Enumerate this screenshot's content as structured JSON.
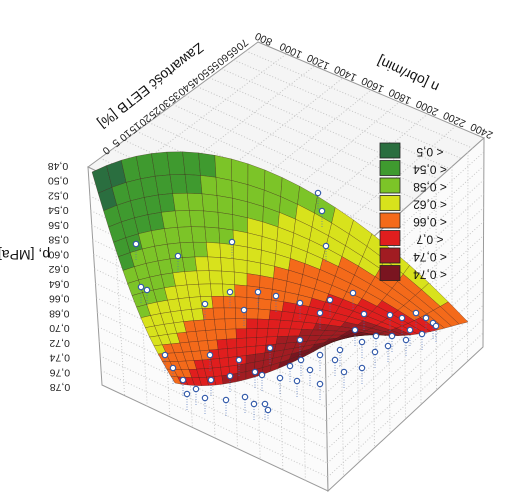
{
  "chart_data": {
    "type": "surface3d",
    "orientation_note": "",
    "axes": {
      "x": {
        "label": "Zawartość EETB [%]",
        "ticks": [
          0,
          5,
          10,
          15,
          20,
          25,
          30,
          35,
          40,
          45,
          50,
          55,
          60,
          65,
          70
        ],
        "range": [
          0,
          70
        ]
      },
      "y": {
        "label": "n [obr/min]",
        "ticks": [
          800,
          1000,
          1200,
          1400,
          1600,
          1800,
          2000,
          2200,
          2400
        ],
        "range": [
          800,
          2400
        ]
      },
      "z": {
        "label": "p, [MPa]",
        "ticks": [
          "0,78",
          "0,76",
          "0,74",
          "0,72",
          "0,70",
          "0,68",
          "0,66",
          "0,64",
          "0,62",
          "0,60",
          "0,58",
          "0,56",
          "0,54",
          "0,52",
          "0,50",
          "0,48"
        ],
        "range": [
          0.48,
          0.78
        ]
      }
    },
    "legend": {
      "placement": "right",
      "items": [
        {
          "label": "< 0,5",
          "color": "#2a6e3f"
        },
        {
          "label": "< 0,54",
          "color": "#3f9a2f"
        },
        {
          "label": "< 0,58",
          "color": "#7cc428"
        },
        {
          "label": "< 0,62",
          "color": "#d8e21c"
        },
        {
          "label": "< 0,66",
          "color": "#f46a1a"
        },
        {
          "label": "< 0,7",
          "color": "#e01e1e"
        },
        {
          "label": "< 0,74",
          "color": "#a11c22"
        },
        {
          "label": "< 0,74",
          "color": "#7a1520"
        }
      ]
    },
    "surface_colors": [
      "#2a6e3f",
      "#3f9a2f",
      "#7cc428",
      "#d8e21c",
      "#f46a1a",
      "#e01e1e",
      "#a11c22",
      "#7a1520"
    ],
    "grid": true
  }
}
